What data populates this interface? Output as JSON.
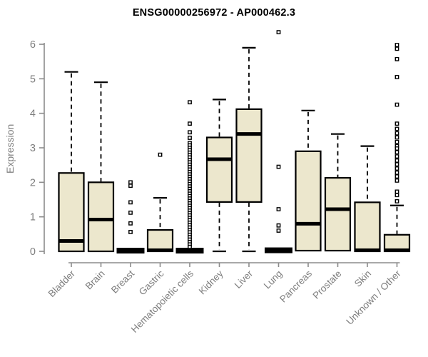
{
  "chart_data": {
    "type": "boxplot",
    "title": "ENSG00000256972 - AP000462.3",
    "ylabel": "Expression",
    "xlabel": "",
    "ylim": [
      0,
      6
    ],
    "yticks": [
      0,
      1,
      2,
      3,
      4,
      5,
      6
    ],
    "grid": false,
    "legend": "none",
    "colors": {
      "box_fill": "#ece7cd",
      "box_stroke": "#000000",
      "median": "#000000",
      "whisker": "#000000",
      "outlier_stroke": "#000000",
      "axis_line": "#8c8c8c",
      "tick_label": "#7d7d7d",
      "title": "#000000"
    },
    "categories": [
      "Bladder",
      "Brain",
      "Breast",
      "Gastric",
      "Hematopoietic cells",
      "Kidney",
      "Liver",
      "Lung",
      "Pancreas",
      "Prostate",
      "Skin",
      "Unknown / Other"
    ],
    "series": [
      {
        "category": "Bladder",
        "whisker_low": 0,
        "q1": 0,
        "median": 0.3,
        "q3": 2.27,
        "whisker_high": 5.2,
        "outliers": []
      },
      {
        "category": "Brain",
        "whisker_low": 0,
        "q1": 0,
        "median": 0.92,
        "q3": 2.0,
        "whisker_high": 4.9,
        "outliers": []
      },
      {
        "category": "Breast",
        "whisker_low": 0,
        "q1": 0,
        "median": 0.02,
        "q3": 0.04,
        "whisker_high": 0.04,
        "outliers": [
          2.0,
          1.9,
          1.42,
          1.12,
          0.81,
          0.56
        ]
      },
      {
        "category": "Gastric",
        "whisker_low": 0,
        "q1": 0,
        "median": 0.03,
        "q3": 0.62,
        "whisker_high": 1.55,
        "outliers": [
          2.8
        ]
      },
      {
        "category": "Hematopoietic cells",
        "whisker_low": 0,
        "q1": 0,
        "median": 0.02,
        "q3": 0.04,
        "whisker_high": 0.04,
        "outliers": [
          4.32,
          3.7,
          3.45,
          3.29,
          3.14,
          3.07,
          3.0,
          2.93,
          2.86,
          2.79,
          2.72,
          2.65,
          2.58,
          2.51,
          2.44,
          2.37,
          2.3,
          2.23,
          2.16,
          2.09,
          2.02,
          1.95,
          1.88,
          1.81,
          1.74,
          1.67,
          1.6,
          1.53,
          1.46,
          1.39,
          1.32,
          1.25,
          1.18,
          1.11,
          1.04,
          0.97,
          0.9,
          0.83,
          0.76,
          0.69,
          0.62,
          0.55,
          0.48,
          0.41,
          0.34,
          0.27,
          0.2,
          0.13
        ]
      },
      {
        "category": "Kidney",
        "whisker_low": 0,
        "q1": 1.43,
        "median": 2.67,
        "q3": 3.3,
        "whisker_high": 4.4,
        "outliers": []
      },
      {
        "category": "Liver",
        "whisker_low": 0,
        "q1": 1.43,
        "median": 3.4,
        "q3": 4.12,
        "whisker_high": 5.9,
        "outliers": []
      },
      {
        "category": "Lung",
        "whisker_low": 0,
        "q1": 0,
        "median": 0.03,
        "q3": 0.05,
        "whisker_high": 0.05,
        "outliers": [
          6.35,
          2.45,
          1.22,
          0.75,
          0.6
        ]
      },
      {
        "category": "Pancreas",
        "whisker_low": 0.02,
        "q1": 0.02,
        "median": 0.8,
        "q3": 2.9,
        "whisker_high": 4.08,
        "outliers": []
      },
      {
        "category": "Prostate",
        "whisker_low": 0.02,
        "q1": 0.02,
        "median": 1.22,
        "q3": 2.13,
        "whisker_high": 3.4,
        "outliers": []
      },
      {
        "category": "Skin",
        "whisker_low": 0,
        "q1": 0,
        "median": 0.03,
        "q3": 1.42,
        "whisker_high": 3.05,
        "outliers": []
      },
      {
        "category": "Unknown / Other",
        "whisker_low": 0,
        "q1": 0,
        "median": 0.03,
        "q3": 0.48,
        "whisker_high": 1.33,
        "outliers": [
          5.98,
          5.87,
          5.57,
          5.05,
          4.25,
          3.7,
          3.55,
          3.42,
          3.3,
          3.17,
          3.05,
          2.98,
          2.87,
          2.75,
          2.63,
          2.52,
          2.4,
          2.28,
          2.17,
          2.05,
          1.73,
          1.63,
          1.45
        ]
      }
    ]
  }
}
